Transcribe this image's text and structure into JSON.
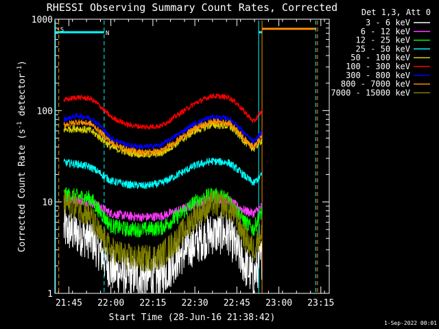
{
  "chart_data": {
    "type": "line",
    "title": "RHESSI Observing Summary Count Rates, Corrected",
    "xlabel": "Start Time (28-Jun-16 21:38:42)",
    "ylabel": "Corrected Count Rate (s⁻¹ detector⁻¹)",
    "ylabel_prefix": "Corrected Count Rate (s",
    "ylabel_sup1": "-1",
    "ylabel_mid": " detector",
    "ylabel_sup2": "-1",
    "ylabel_suffix": ")",
    "yscale": "log",
    "ylim": [
      1,
      1000
    ],
    "y_ticks": [
      {
        "value": 1,
        "label": "1"
      },
      {
        "value": 10,
        "label": "10"
      },
      {
        "value": 100,
        "label": "100"
      },
      {
        "value": 1000,
        "label": "1000"
      }
    ],
    "xlim_min": [
      21.6667,
      23.3
    ],
    "x_ticks": [
      {
        "value": 21.75,
        "label": "21:45"
      },
      {
        "value": 22.0,
        "label": "22:00"
      },
      {
        "value": 22.25,
        "label": "22:15"
      },
      {
        "value": 22.5,
        "label": "22:30"
      },
      {
        "value": 22.75,
        "label": "22:45"
      },
      {
        "value": 23.0,
        "label": "23:00"
      },
      {
        "value": 23.25,
        "label": "23:15"
      }
    ],
    "legend_header": "Det 1,3, Att 0",
    "legend_position": "right",
    "date_stamp": "1-Sep-2022 00:01",
    "flags": [
      {
        "label": "S",
        "color": "#ff8c00",
        "x_start": 21.68,
        "x_end": 21.69
      },
      {
        "label": "N",
        "color": "#00ffff",
        "x_start": 21.66,
        "x_end": 21.96
      },
      {
        "label": "",
        "color": "#00ffff",
        "x_start": 22.88,
        "x_end": 22.9
      },
      {
        "label": "",
        "color": "#ff8c00",
        "x_start": 22.9,
        "x_end": 23.22
      }
    ],
    "vlines": [
      {
        "x": 21.67,
        "color": "#00ffff",
        "style": "solid"
      },
      {
        "x": 21.69,
        "color": "#ff8c00",
        "style": "dash"
      },
      {
        "x": 21.96,
        "color": "#00ffff",
        "style": "dash"
      },
      {
        "x": 22.88,
        "color": "#00ffff",
        "style": "solid"
      },
      {
        "x": 22.9,
        "color": "#ff8c00",
        "style": "solid"
      },
      {
        "x": 23.22,
        "color": "#00ffff",
        "style": "dash"
      },
      {
        "x": 23.23,
        "color": "#ff8c00",
        "style": "dash"
      }
    ],
    "series": [
      {
        "name": "3 - 6 keV",
        "color": "#ffffff",
        "x": [
          21.72,
          21.8,
          21.88,
          21.93,
          22.0,
          22.1,
          22.2,
          22.3,
          22.4,
          22.5,
          22.6,
          22.7,
          22.75,
          22.8,
          22.85,
          22.9
        ],
        "values": [
          5,
          4.5,
          4,
          3,
          1.8,
          1.6,
          1.5,
          1.5,
          2.5,
          3.5,
          4.5,
          4.5,
          3,
          2,
          1.5,
          2.5
        ]
      },
      {
        "name": "6 - 12 keV",
        "color": "#ff3cff",
        "x": [
          21.72,
          21.8,
          21.88,
          21.93,
          22.0,
          22.1,
          22.2,
          22.3,
          22.4,
          22.5,
          22.6,
          22.7,
          22.75,
          22.8,
          22.85,
          22.9
        ],
        "values": [
          11,
          10.5,
          10,
          9,
          7.5,
          7,
          6.8,
          7,
          8,
          9.5,
          11,
          10.5,
          9,
          8,
          7.5,
          9
        ]
      },
      {
        "name": "12 - 25 keV",
        "color": "#00ff00",
        "x": [
          21.72,
          21.8,
          21.88,
          21.93,
          22.0,
          22.1,
          22.2,
          22.3,
          22.4,
          22.5,
          22.6,
          22.7,
          22.75,
          22.8,
          22.85,
          22.9
        ],
        "values": [
          12,
          11.5,
          11,
          8,
          5.5,
          5,
          5,
          5.2,
          7,
          10,
          12,
          11,
          8,
          6,
          5,
          8
        ]
      },
      {
        "name": "25 - 50 keV",
        "color": "#00ffff",
        "x": [
          21.72,
          21.8,
          21.88,
          21.93,
          22.0,
          22.1,
          22.2,
          22.3,
          22.4,
          22.5,
          22.6,
          22.7,
          22.75,
          22.8,
          22.85,
          22.9
        ],
        "values": [
          27,
          26,
          24,
          21,
          17,
          15.5,
          15,
          16,
          20,
          25,
          28,
          27,
          23,
          19,
          16,
          20
        ]
      },
      {
        "name": "50 - 100 keV",
        "color": "#d8d000",
        "x": [
          21.72,
          21.8,
          21.88,
          21.93,
          22.0,
          22.1,
          22.2,
          22.3,
          22.4,
          22.5,
          22.6,
          22.7,
          22.75,
          22.8,
          22.85,
          22.9
        ],
        "values": [
          62,
          64,
          60,
          52,
          40,
          35,
          33,
          34,
          45,
          60,
          70,
          68,
          58,
          45,
          38,
          48
        ]
      },
      {
        "name": "100 - 300 keV",
        "color": "#ff0000",
        "x": [
          21.72,
          21.8,
          21.88,
          21.93,
          22.0,
          22.1,
          22.2,
          22.3,
          22.4,
          22.5,
          22.6,
          22.7,
          22.75,
          22.8,
          22.85,
          22.9
        ],
        "values": [
          130,
          140,
          135,
          115,
          85,
          70,
          66,
          68,
          90,
          120,
          145,
          140,
          120,
          95,
          75,
          100
        ]
      },
      {
        "name": "300 - 800 keV",
        "color": "#0000ff",
        "x": [
          21.72,
          21.8,
          21.88,
          21.93,
          22.0,
          22.1,
          22.2,
          22.3,
          22.4,
          22.5,
          22.6,
          22.7,
          22.75,
          22.8,
          22.85,
          22.9
        ],
        "values": [
          80,
          88,
          83,
          70,
          50,
          42,
          40,
          42,
          55,
          72,
          85,
          82,
          70,
          55,
          45,
          58
        ]
      },
      {
        "name": "800 - 7000 keV",
        "color": "#ff8c00",
        "x": [
          21.72,
          21.8,
          21.88,
          21.93,
          22.0,
          22.1,
          22.2,
          22.3,
          22.4,
          22.5,
          22.6,
          22.7,
          22.75,
          22.8,
          22.85,
          22.9
        ],
        "values": [
          70,
          75,
          72,
          60,
          45,
          37,
          35,
          36,
          48,
          64,
          76,
          74,
          62,
          48,
          40,
          52
        ]
      },
      {
        "name": "7000 - 15000 keV",
        "color": "#808000",
        "x": [
          21.72,
          21.8,
          21.88,
          21.93,
          22.0,
          22.1,
          22.2,
          22.3,
          22.4,
          22.5,
          22.6,
          22.7,
          22.75,
          22.8,
          22.85,
          22.9
        ],
        "values": [
          9.5,
          9,
          7,
          4.5,
          3,
          2.5,
          2.4,
          2.6,
          4,
          7,
          9.5,
          9,
          6.5,
          4,
          3,
          5
        ]
      }
    ]
  }
}
